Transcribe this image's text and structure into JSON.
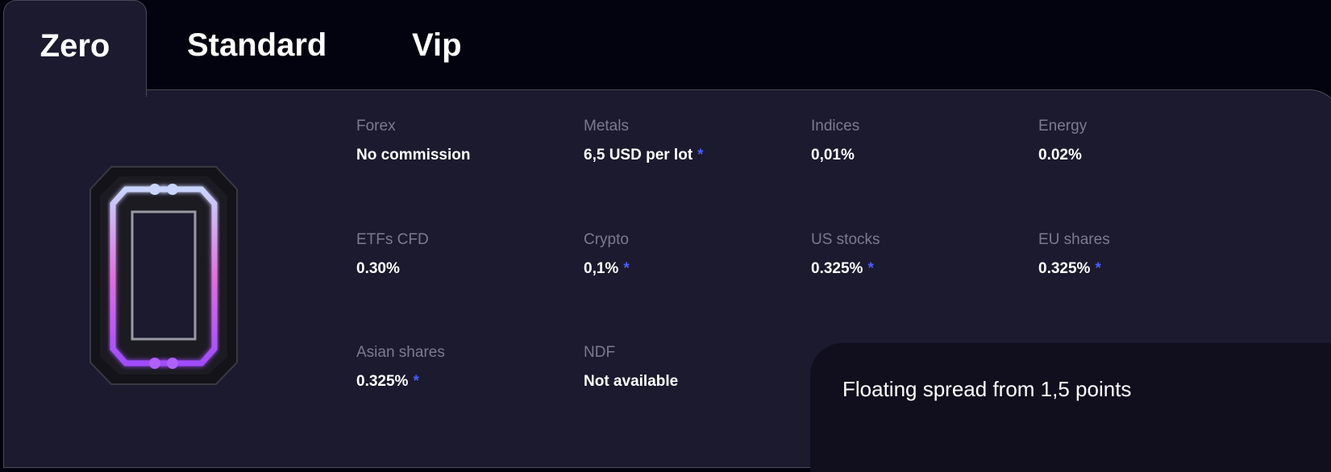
{
  "tabs": [
    {
      "label": "Zero",
      "active": true
    },
    {
      "label": "Standard",
      "active": false
    },
    {
      "label": "Vip",
      "active": false
    }
  ],
  "items": [
    {
      "label": "Forex",
      "value": "No commission",
      "asterisk": false
    },
    {
      "label": "Metals",
      "value": "6,5 USD per lot",
      "asterisk": true
    },
    {
      "label": "Indices",
      "value": "0,01%",
      "asterisk": false
    },
    {
      "label": "Energy",
      "value": "0.02%",
      "asterisk": false
    },
    {
      "label": "ETFs CFD",
      "value": "0.30%",
      "asterisk": false
    },
    {
      "label": "Crypto",
      "value": "0,1%",
      "asterisk": true
    },
    {
      "label": "US stocks",
      "value": "0.325%",
      "asterisk": true
    },
    {
      "label": "EU shares",
      "value": "0.325%",
      "asterisk": true
    },
    {
      "label": "Asian shares",
      "value": "0.325%",
      "asterisk": true
    },
    {
      "label": "NDF",
      "value": "Not available",
      "asterisk": false
    }
  ],
  "asterisk": "*",
  "spread_note": "Floating spread from 1,5 points",
  "icon": "neon-zero-icon",
  "colors": {
    "background": "#03020f",
    "panel": "#1b1a2e",
    "note_box": "#110f1e",
    "asterisk": "#4a5cff"
  }
}
